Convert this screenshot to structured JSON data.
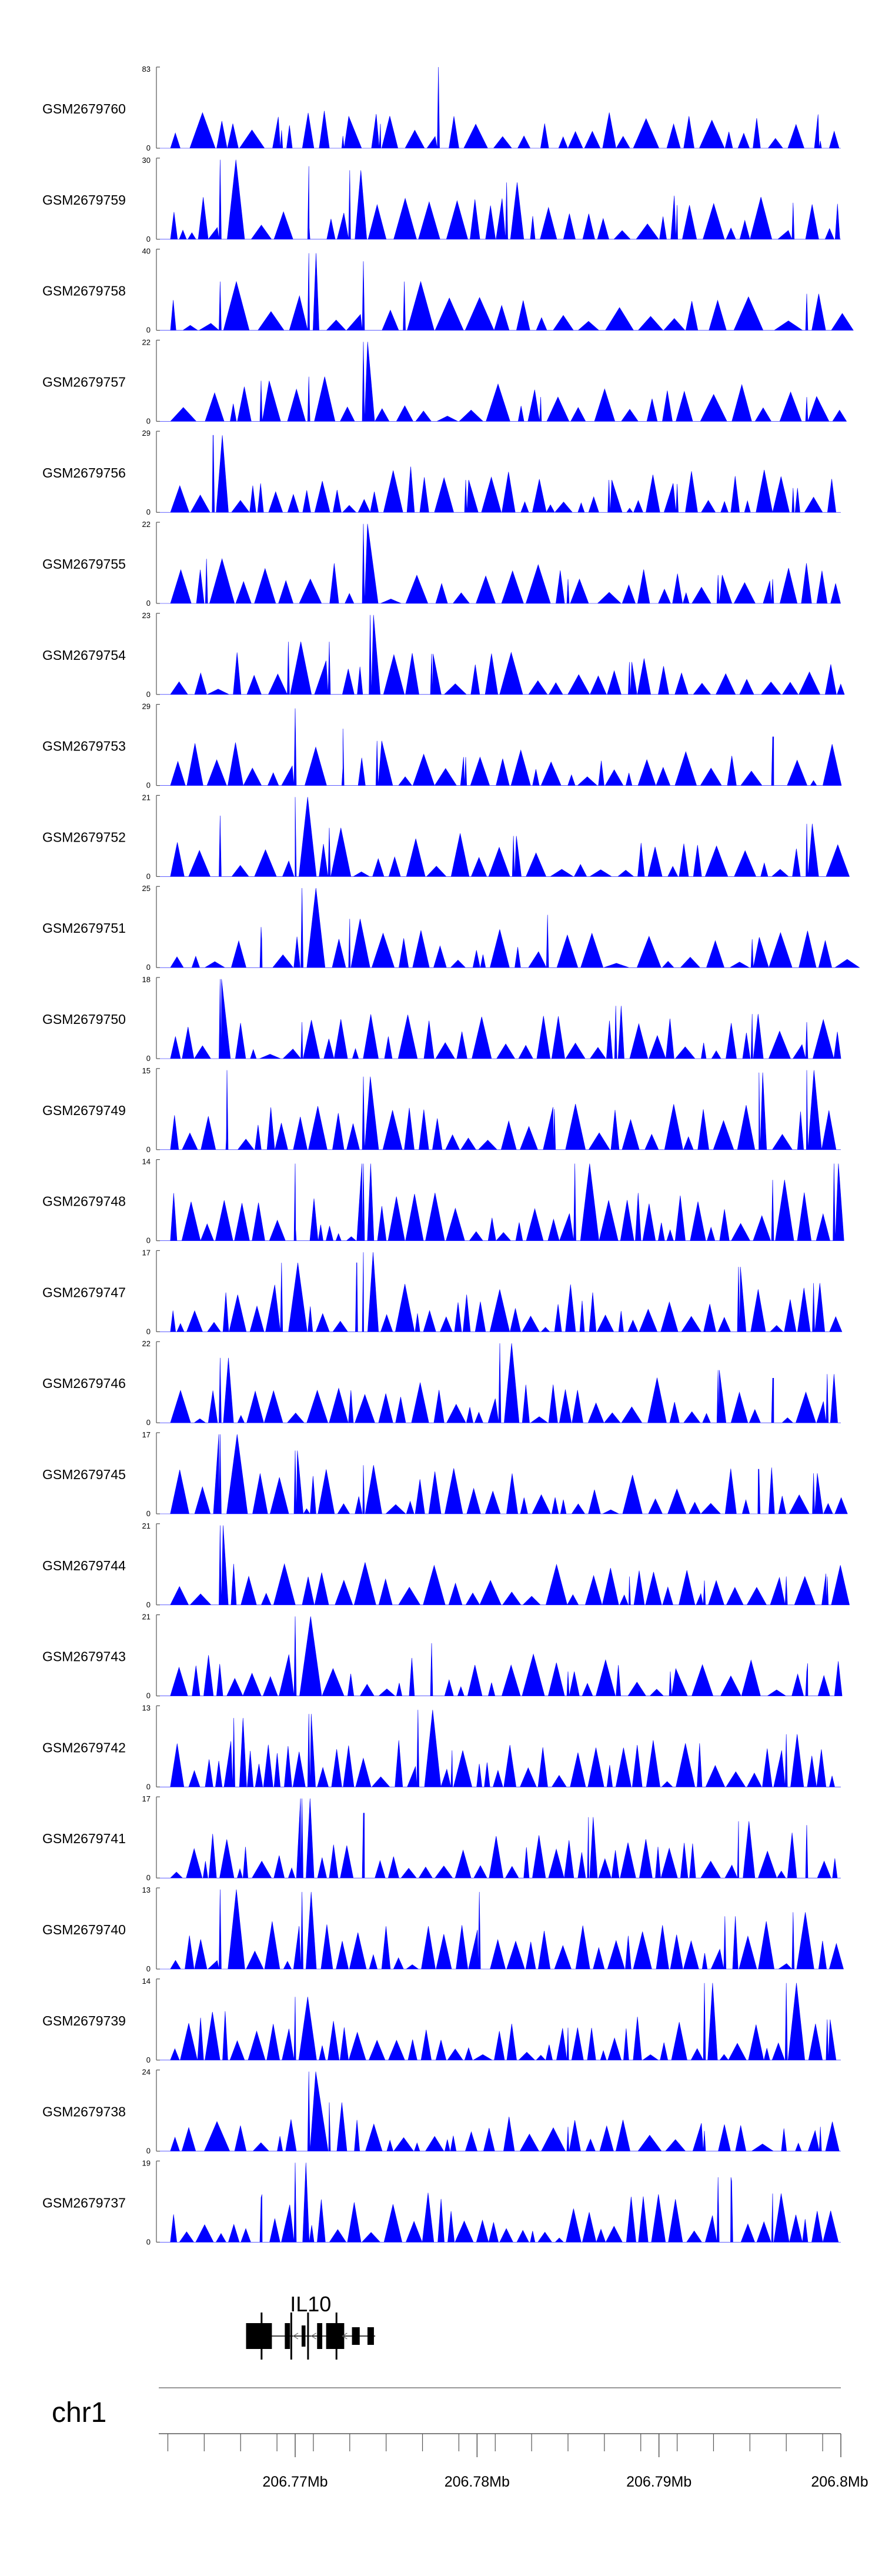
{
  "chart_data": {
    "type": "area",
    "title": "",
    "track_color": "#0000ff",
    "tracks": [
      {
        "label": "GSM2679760",
        "ymax": 83,
        "ymin": 0,
        "seed": 760,
        "spikes": [
          [
            0.18,
            0.22
          ],
          [
            0.27,
            0.15
          ],
          [
            0.325,
            0.3
          ],
          [
            0.41,
            1.0
          ],
          [
            0.97,
            0.09
          ]
        ],
        "density": 0.5
      },
      {
        "label": "GSM2679759",
        "ymax": 30,
        "ymin": 0,
        "seed": 759,
        "spikes": [
          [
            0.09,
            0.98
          ],
          [
            0.22,
            0.9
          ],
          [
            0.28,
            0.85
          ],
          [
            0.51,
            0.7
          ],
          [
            0.76,
            0.42
          ],
          [
            0.93,
            0.45
          ]
        ],
        "density": 0.7
      },
      {
        "label": "GSM2679758",
        "ymax": 40,
        "ymin": 0,
        "seed": 758,
        "spikes": [
          [
            0.09,
            0.6
          ],
          [
            0.22,
            0.95
          ],
          [
            0.3,
            0.85
          ],
          [
            0.36,
            0.6
          ],
          [
            0.95,
            0.45
          ]
        ],
        "density": 0.4
      },
      {
        "label": "GSM2679757",
        "ymax": 22,
        "ymin": 0,
        "seed": 757,
        "spikes": [
          [
            0.15,
            0.5
          ],
          [
            0.22,
            0.55
          ],
          [
            0.3,
            0.98
          ],
          [
            0.56,
            0.3
          ],
          [
            0.95,
            0.3
          ]
        ],
        "density": 0.55
      },
      {
        "label": "GSM2679756",
        "ymax": 29,
        "ymin": 0,
        "seed": 756,
        "spikes": [
          [
            0.08,
            0.95
          ],
          [
            0.45,
            0.4
          ],
          [
            0.66,
            0.4
          ],
          [
            0.76,
            0.35
          ],
          [
            0.93,
            0.3
          ]
        ],
        "density": 0.8
      },
      {
        "label": "GSM2679755",
        "ymax": 22,
        "ymin": 0,
        "seed": 755,
        "spikes": [
          [
            0.07,
            0.55
          ],
          [
            0.3,
            0.98
          ],
          [
            0.6,
            0.3
          ],
          [
            0.82,
            0.35
          ],
          [
            0.9,
            0.3
          ]
        ],
        "density": 0.6
      },
      {
        "label": "GSM2679754",
        "ymax": 23,
        "ymin": 0,
        "seed": 754,
        "spikes": [
          [
            0.19,
            0.65
          ],
          [
            0.25,
            0.65
          ],
          [
            0.31,
            0.98
          ],
          [
            0.4,
            0.5
          ],
          [
            0.69,
            0.4
          ]
        ],
        "density": 0.7
      },
      {
        "label": "GSM2679753",
        "ymax": 29,
        "ymin": 0,
        "seed": 753,
        "spikes": [
          [
            0.2,
            0.95
          ],
          [
            0.27,
            0.7
          ],
          [
            0.32,
            0.55
          ],
          [
            0.45,
            0.35
          ],
          [
            0.9,
            0.6
          ]
        ],
        "density": 0.75
      },
      {
        "label": "GSM2679752",
        "ymax": 21,
        "ymin": 0,
        "seed": 752,
        "spikes": [
          [
            0.09,
            0.75
          ],
          [
            0.2,
            0.98
          ],
          [
            0.25,
            0.6
          ],
          [
            0.52,
            0.5
          ],
          [
            0.95,
            0.65
          ]
        ],
        "density": 0.7
      },
      {
        "label": "GSM2679751",
        "ymax": 25,
        "ymin": 0,
        "seed": 751,
        "spikes": [
          [
            0.15,
            0.5
          ],
          [
            0.21,
            0.98
          ],
          [
            0.28,
            0.6
          ],
          [
            0.57,
            0.65
          ],
          [
            0.87,
            0.35
          ]
        ],
        "density": 0.6
      },
      {
        "label": "GSM2679750",
        "ymax": 18,
        "ymin": 0,
        "seed": 750,
        "spikes": [
          [
            0.09,
            0.98
          ],
          [
            0.21,
            0.45
          ],
          [
            0.67,
            0.65
          ],
          [
            0.87,
            0.55
          ],
          [
            0.95,
            0.45
          ]
        ],
        "density": 0.75
      },
      {
        "label": "GSM2679749",
        "ymax": 15,
        "ymin": 0,
        "seed": 749,
        "spikes": [
          [
            0.1,
            0.98
          ],
          [
            0.3,
            0.9
          ],
          [
            0.58,
            0.5
          ],
          [
            0.88,
            0.95
          ],
          [
            0.95,
            0.98
          ]
        ],
        "density": 0.8
      },
      {
        "label": "GSM2679748",
        "ymax": 14,
        "ymin": 0,
        "seed": 748,
        "spikes": [
          [
            0.2,
            0.95
          ],
          [
            0.3,
            0.95
          ],
          [
            0.61,
            0.95
          ],
          [
            0.9,
            0.75
          ],
          [
            0.99,
            0.95
          ]
        ],
        "density": 0.85
      },
      {
        "label": "GSM2679747",
        "ymax": 17,
        "ymin": 0,
        "seed": 747,
        "spikes": [
          [
            0.18,
            0.85
          ],
          [
            0.29,
            0.85
          ],
          [
            0.3,
            0.98
          ],
          [
            0.85,
            0.8
          ],
          [
            0.96,
            0.6
          ]
        ],
        "density": 0.85
      },
      {
        "label": "GSM2679746",
        "ymax": 22,
        "ymin": 0,
        "seed": 746,
        "spikes": [
          [
            0.09,
            0.8
          ],
          [
            0.5,
            0.98
          ],
          [
            0.82,
            0.65
          ],
          [
            0.9,
            0.55
          ],
          [
            0.98,
            0.6
          ]
        ],
        "density": 0.8
      },
      {
        "label": "GSM2679745",
        "ymax": 17,
        "ymin": 0,
        "seed": 745,
        "spikes": [
          [
            0.09,
            0.98
          ],
          [
            0.2,
            0.78
          ],
          [
            0.3,
            0.6
          ],
          [
            0.88,
            0.55
          ],
          [
            0.96,
            0.5
          ]
        ],
        "density": 0.8
      },
      {
        "label": "GSM2679744",
        "ymax": 21,
        "ymin": 0,
        "seed": 744,
        "spikes": [
          [
            0.09,
            0.98
          ],
          [
            0.69,
            0.35
          ],
          [
            0.8,
            0.3
          ],
          [
            0.92,
            0.35
          ],
          [
            0.98,
            0.35
          ]
        ],
        "density": 0.75
      },
      {
        "label": "GSM2679743",
        "ymax": 21,
        "ymin": 0,
        "seed": 743,
        "spikes": [
          [
            0.2,
            0.98
          ],
          [
            0.4,
            0.65
          ],
          [
            0.6,
            0.3
          ],
          [
            0.75,
            0.3
          ],
          [
            0.95,
            0.3
          ]
        ],
        "density": 0.7
      },
      {
        "label": "GSM2679742",
        "ymax": 13,
        "ymin": 0,
        "seed": 742,
        "spikes": [
          [
            0.11,
            0.85
          ],
          [
            0.22,
            0.9
          ],
          [
            0.38,
            0.95
          ],
          [
            0.43,
            0.45
          ],
          [
            0.92,
            0.65
          ]
        ],
        "density": 0.85
      },
      {
        "label": "GSM2679741",
        "ymax": 17,
        "ymin": 0,
        "seed": 741,
        "spikes": [
          [
            0.21,
            0.98
          ],
          [
            0.3,
            0.8
          ],
          [
            0.63,
            0.75
          ],
          [
            0.85,
            0.7
          ],
          [
            0.95,
            0.65
          ]
        ],
        "density": 0.85
      },
      {
        "label": "GSM2679740",
        "ymax": 13,
        "ymin": 0,
        "seed": 740,
        "spikes": [
          [
            0.09,
            0.98
          ],
          [
            0.21,
            0.95
          ],
          [
            0.47,
            0.95
          ],
          [
            0.83,
            0.65
          ],
          [
            0.93,
            0.7
          ]
        ],
        "density": 0.9
      },
      {
        "label": "GSM2679739",
        "ymax": 14,
        "ymin": 0,
        "seed": 739,
        "spikes": [
          [
            0.2,
            0.78
          ],
          [
            0.6,
            0.4
          ],
          [
            0.8,
            0.95
          ],
          [
            0.92,
            0.95
          ],
          [
            0.98,
            0.5
          ]
        ],
        "density": 0.9
      },
      {
        "label": "GSM2679738",
        "ymax": 24,
        "ymin": 0,
        "seed": 738,
        "spikes": [
          [
            0.22,
            0.98
          ],
          [
            0.25,
            0.6
          ],
          [
            0.6,
            0.3
          ],
          [
            0.8,
            0.25
          ],
          [
            0.97,
            0.3
          ]
        ],
        "density": 0.6
      },
      {
        "label": "GSM2679737",
        "ymax": 19,
        "ymin": 0,
        "seed": 737,
        "spikes": [
          [
            0.15,
            0.55
          ],
          [
            0.2,
            0.98
          ],
          [
            0.82,
            0.8
          ],
          [
            0.84,
            0.75
          ],
          [
            0.9,
            0.6
          ]
        ],
        "density": 0.9
      }
    ],
    "gene": {
      "name": "IL10",
      "color": "#000000",
      "strand": "-",
      "start_mb": 206.7673,
      "end_mb": 206.7744
    },
    "chromosome": "chr1",
    "xaxis": {
      "start_mb": 206.7625,
      "end_mb": 206.8,
      "ticks": [
        "206.77Mb",
        "206.78Mb",
        "206.79Mb",
        "206.8Mb"
      ],
      "tick_values": [
        206.77,
        206.78,
        206.79,
        206.8
      ]
    }
  }
}
